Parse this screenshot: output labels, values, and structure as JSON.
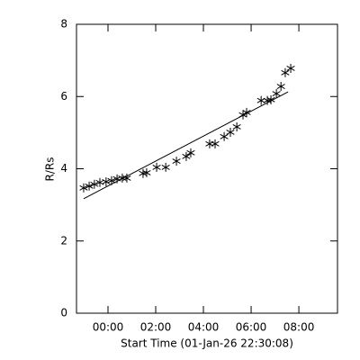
{
  "chart_data": {
    "type": "scatter",
    "xlabel": "Start Time (01-Jan-26 22:30:08)",
    "ylabel": "R/Rs",
    "xlim": [
      -1.32,
      9.62
    ],
    "ylim": [
      0,
      8
    ],
    "xticks": [
      {
        "value": 0,
        "label": "00:00"
      },
      {
        "value": 2,
        "label": "02:00"
      },
      {
        "value": 4,
        "label": "04:00"
      },
      {
        "value": 6,
        "label": "06:00"
      },
      {
        "value": 8,
        "label": "08:00"
      }
    ],
    "yticks": [
      0,
      2,
      4,
      6,
      8
    ],
    "grid": false,
    "series": [
      {
        "mode": "markers",
        "marker": "asterisk",
        "color": "#000000",
        "x": [
          -1.02,
          -0.79,
          -0.57,
          -0.34,
          -0.08,
          0.15,
          0.38,
          0.6,
          0.79,
          1.47,
          1.62,
          2.04,
          2.42,
          2.87,
          3.28,
          3.47,
          4.26,
          4.49,
          4.87,
          5.13,
          5.4,
          5.66,
          5.81,
          6.42,
          6.68,
          6.83,
          7.06,
          7.25,
          7.43,
          7.66
        ],
        "values": [
          3.47,
          3.52,
          3.57,
          3.62,
          3.64,
          3.67,
          3.72,
          3.74,
          3.74,
          3.87,
          3.89,
          4.04,
          4.04,
          4.21,
          4.34,
          4.44,
          4.69,
          4.69,
          4.89,
          5.01,
          5.16,
          5.49,
          5.56,
          5.89,
          5.89,
          5.91,
          6.08,
          6.28,
          6.66,
          6.78
        ]
      },
      {
        "mode": "line",
        "color": "#000000",
        "x": [
          -1.02,
          7.55
        ],
        "values": [
          3.17,
          6.13
        ]
      }
    ]
  }
}
